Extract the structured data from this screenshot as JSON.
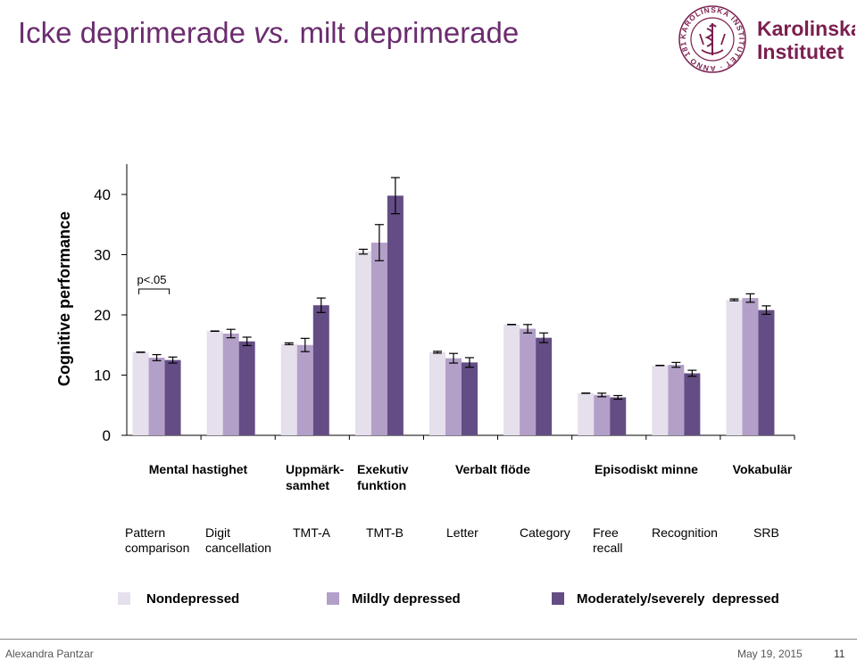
{
  "slide": {
    "title_part1": "Icke deprimerade ",
    "title_vs": "vs.",
    "title_part2": " milt deprimerade",
    "logo_line1": "Karolinska",
    "logo_line2": "Institutet",
    "seal_text": "KAROLINSKA INSTITUTET · ANNO 1810",
    "footer_author": "Alexandra Pantzar",
    "footer_date": "May 19, 2015",
    "footer_page": "11",
    "brand_color": "#7b1f4f"
  },
  "chart_data": {
    "type": "bar",
    "ylabel": "Cognitive performance",
    "yticks": [
      0,
      10,
      20,
      30,
      40
    ],
    "ylim": [
      0,
      44
    ],
    "grid": false,
    "domains": [
      {
        "label": [
          "Mental hastighet"
        ]
      },
      {
        "label": [
          "Uppmärk-",
          "samhet"
        ]
      },
      {
        "label": [
          "Exekutiv",
          "funktion"
        ]
      },
      {
        "label": [
          "Verbalt flöde"
        ]
      },
      {
        "label": [
          "Episodiskt minne"
        ]
      },
      {
        "label": [
          "Vokabulär"
        ]
      }
    ],
    "categories": [
      [
        "Pattern",
        "comparison"
      ],
      [
        "Digit",
        "cancellation"
      ],
      [
        "TMT-A"
      ],
      [
        "TMT-B"
      ],
      [
        "Letter"
      ],
      [
        "Category"
      ],
      [
        "Free",
        "recall"
      ],
      [
        "Recognition"
      ],
      [
        "SRB"
      ]
    ],
    "series": [
      {
        "name": "Nondepressed",
        "color": "#e6dfec",
        "values": [
          13.8,
          17.3,
          15.2,
          30.5,
          13.8,
          18.4,
          7.0,
          11.6,
          22.5
        ],
        "errors": [
          0,
          0,
          0.15,
          0.4,
          0.15,
          0,
          0,
          0,
          0.15
        ]
      },
      {
        "name": "Mildly depressed",
        "color": "#b3a0c8",
        "values": [
          12.9,
          16.9,
          15.0,
          32.0,
          12.8,
          17.7,
          6.7,
          11.7,
          22.8
        ],
        "errors": [
          0.5,
          0.7,
          1.1,
          3.0,
          0.8,
          0.7,
          0.3,
          0.4,
          0.7
        ]
      },
      {
        "name": "Moderately/severely  depressed",
        "color": "#644d84",
        "values": [
          12.5,
          15.6,
          21.6,
          39.8,
          12.1,
          16.2,
          6.3,
          10.3,
          20.8
        ],
        "errors": [
          0.5,
          0.7,
          1.2,
          3.0,
          0.8,
          0.8,
          0.3,
          0.5,
          0.7
        ]
      }
    ],
    "annotations": [
      {
        "text": "p<.05",
        "category_index": 0
      }
    ]
  }
}
